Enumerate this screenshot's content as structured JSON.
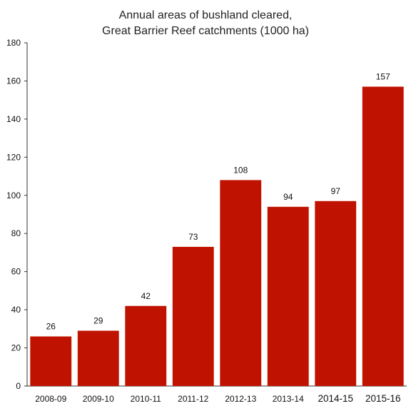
{
  "chart_data": {
    "type": "bar",
    "title_lines": [
      "Annual areas of bushland cleared,",
      "Great Barrier Reef catchments (1000 ha)"
    ],
    "xlabel": "",
    "ylabel": "",
    "categories": [
      "2008-09",
      "2009-10",
      "2010-11",
      "2011-12",
      "2012-13",
      "2013-14",
      "2014-15",
      "2015-16"
    ],
    "values": [
      26,
      29,
      42,
      73,
      108,
      94,
      97,
      157
    ],
    "data_labels": [
      "26",
      "29",
      "42",
      "73",
      "108",
      "94",
      "97",
      "157"
    ],
    "ylim": [
      0,
      180
    ],
    "yticks": [
      0,
      20,
      40,
      60,
      80,
      100,
      120,
      140,
      160,
      180
    ],
    "grid": false,
    "legend": "none",
    "bar_color": "#c01200"
  }
}
